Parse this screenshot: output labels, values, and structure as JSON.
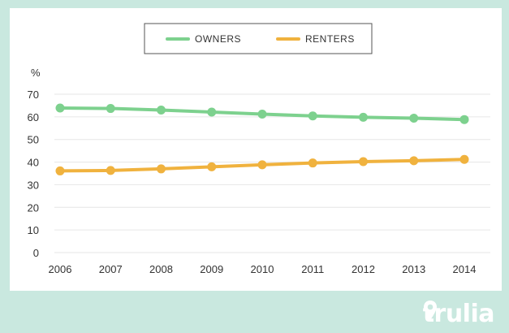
{
  "chart_data": {
    "type": "line",
    "title": "",
    "xlabel": "",
    "ylabel": "%",
    "x": [
      "2006",
      "2007",
      "2008",
      "2009",
      "2010",
      "2011",
      "2012",
      "2013",
      "2014"
    ],
    "ylim": [
      0,
      70
    ],
    "yticks": [
      "0",
      "10",
      "20",
      "30",
      "40",
      "50",
      "60",
      "70"
    ],
    "grid": true,
    "legend_position": "top-center",
    "series": [
      {
        "name": "OWNERS",
        "color": "#7dd18e",
        "values": [
          63.9,
          63.7,
          63.0,
          62.1,
          61.2,
          60.4,
          59.8,
          59.4,
          58.8
        ]
      },
      {
        "name": "RENTERS",
        "color": "#f0b23e",
        "values": [
          36.1,
          36.3,
          37.0,
          37.9,
          38.8,
          39.6,
          40.2,
          40.6,
          41.2
        ]
      }
    ]
  },
  "colors": {
    "background": "#c9e8df",
    "panel": "#ffffff",
    "grid": "#e6e6e6",
    "text": "#333333"
  },
  "brand": {
    "name": "trulia",
    "icon": "map-pin-icon"
  }
}
